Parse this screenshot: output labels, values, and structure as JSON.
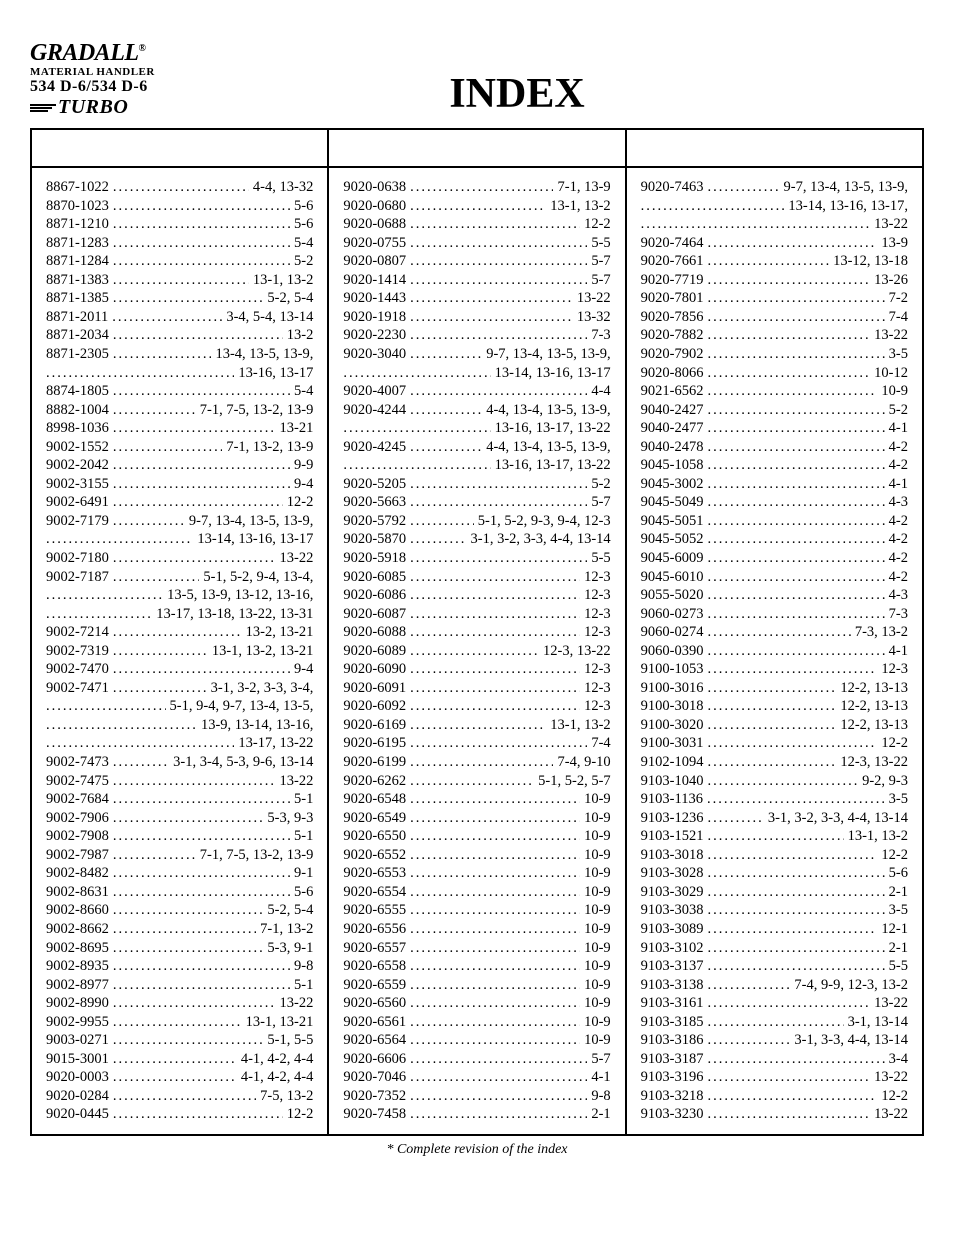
{
  "branding": {
    "brand": "GRADALL",
    "reg": "®",
    "line1": "MATERIAL HANDLER",
    "line2": "534 D-6/534 D-6",
    "turbo": "TURBO"
  },
  "title": "INDEX",
  "footnote": "*  Complete revision of the index",
  "columns": [
    [
      {
        "p": "8867-1022",
        "pg": "4-4, 13-32"
      },
      {
        "p": "8870-1023",
        "pg": "5-6"
      },
      {
        "p": "8871-1210",
        "pg": "5-6"
      },
      {
        "p": "8871-1283",
        "pg": "5-4"
      },
      {
        "p": "8871-1284",
        "pg": "5-2"
      },
      {
        "p": "8871-1383",
        "pg": "13-1, 13-2"
      },
      {
        "p": "8871-1385",
        "pg": "5-2, 5-4"
      },
      {
        "p": "8871-2011",
        "pg": "3-4, 5-4, 13-14"
      },
      {
        "p": "8871-2034",
        "pg": "13-2"
      },
      {
        "p": "8871-2305",
        "pg": "13-4, 13-5, 13-9,"
      },
      {
        "cont": true,
        "pg": "13-16, 13-17"
      },
      {
        "p": "8874-1805",
        "pg": "5-4"
      },
      {
        "p": "8882-1004",
        "pg": "7-1, 7-5, 13-2, 13-9"
      },
      {
        "p": "8998-1036",
        "pg": "13-21"
      },
      {
        "p": "9002-1552",
        "pg": "7-1, 13-2, 13-9"
      },
      {
        "p": "9002-2042",
        "pg": "9-9"
      },
      {
        "p": "9002-3155",
        "pg": "9-4"
      },
      {
        "p": "9002-6491",
        "pg": "12-2"
      },
      {
        "p": "9002-7179",
        "pg": "9-7, 13-4, 13-5, 13-9,"
      },
      {
        "cont": true,
        "pg": "13-14, 13-16, 13-17"
      },
      {
        "p": "9002-7180",
        "pg": "13-22"
      },
      {
        "p": "9002-7187",
        "pg": "5-1, 5-2, 9-4, 13-4,"
      },
      {
        "cont": true,
        "pg": "13-5, 13-9, 13-12, 13-16,"
      },
      {
        "cont": true,
        "pg": "13-17, 13-18, 13-22, 13-31"
      },
      {
        "p": "9002-7214",
        "pg": "13-2, 13-21"
      },
      {
        "p": "9002-7319",
        "pg": "13-1, 13-2, 13-21"
      },
      {
        "p": "9002-7470",
        "pg": "9-4"
      },
      {
        "p": "9002-7471",
        "pg": "3-1, 3-2, 3-3, 3-4,"
      },
      {
        "cont": true,
        "pg": "5-1, 9-4, 9-7, 13-4, 13-5,"
      },
      {
        "cont": true,
        "pg": "13-9, 13-14, 13-16,"
      },
      {
        "cont": true,
        "pg": "13-17, 13-22"
      },
      {
        "p": "9002-7473",
        "pg": "3-1, 3-4, 5-3, 9-6, 13-14"
      },
      {
        "p": "9002-7475",
        "pg": "13-22"
      },
      {
        "p": "9002-7684",
        "pg": "5-1"
      },
      {
        "p": "9002-7906",
        "pg": "5-3, 9-3"
      },
      {
        "p": "9002-7908",
        "pg": "5-1"
      },
      {
        "p": "9002-7987",
        "pg": "7-1, 7-5, 13-2, 13-9"
      },
      {
        "p": "9002-8482",
        "pg": "9-1"
      },
      {
        "p": "9002-8631",
        "pg": "5-6"
      },
      {
        "p": "9002-8660",
        "pg": "5-2, 5-4"
      },
      {
        "p": "9002-8662",
        "pg": "7-1, 13-2"
      },
      {
        "p": "9002-8695",
        "pg": "5-3, 9-1"
      },
      {
        "p": "9002-8935",
        "pg": "9-8"
      },
      {
        "p": "9002-8977",
        "pg": "5-1"
      },
      {
        "p": "9002-8990",
        "pg": "13-22"
      },
      {
        "p": "9002-9955",
        "pg": "13-1, 13-21"
      },
      {
        "p": "9003-0271",
        "pg": "5-1, 5-5"
      },
      {
        "p": "9015-3001",
        "pg": "4-1, 4-2, 4-4"
      },
      {
        "p": "9020-0003",
        "pg": "4-1, 4-2, 4-4"
      },
      {
        "p": "9020-0284",
        "pg": "7-5, 13-2"
      },
      {
        "p": "9020-0445",
        "pg": "12-2"
      }
    ],
    [
      {
        "p": "9020-0638",
        "pg": "7-1, 13-9"
      },
      {
        "p": "9020-0680",
        "pg": "13-1, 13-2"
      },
      {
        "p": "9020-0688",
        "pg": "12-2"
      },
      {
        "p": "9020-0755",
        "pg": "5-5"
      },
      {
        "p": "9020-0807",
        "pg": "5-7"
      },
      {
        "p": "9020-1414",
        "pg": "5-7"
      },
      {
        "p": "9020-1443",
        "pg": "13-22"
      },
      {
        "p": "9020-1918",
        "pg": "13-32"
      },
      {
        "p": "9020-2230",
        "pg": "7-3"
      },
      {
        "p": "9020-3040",
        "pg": "9-7, 13-4, 13-5, 13-9,"
      },
      {
        "cont": true,
        "pg": "13-14, 13-16, 13-17"
      },
      {
        "p": "9020-4007",
        "pg": "4-4"
      },
      {
        "p": "9020-4244",
        "pg": "4-4, 13-4, 13-5, 13-9,"
      },
      {
        "cont": true,
        "pg": "13-16, 13-17, 13-22"
      },
      {
        "p": "9020-4245",
        "pg": "4-4, 13-4, 13-5, 13-9,"
      },
      {
        "cont": true,
        "pg": "13-16, 13-17, 13-22"
      },
      {
        "p": "9020-5205",
        "pg": "5-2"
      },
      {
        "p": "9020-5663",
        "pg": "5-7"
      },
      {
        "p": "9020-5792",
        "pg": "5-1, 5-2, 9-3, 9-4, 12-3"
      },
      {
        "p": "9020-5870",
        "pg": "3-1, 3-2, 3-3, 4-4, 13-14"
      },
      {
        "p": "9020-5918",
        "pg": "5-5"
      },
      {
        "p": "9020-6085",
        "pg": "12-3"
      },
      {
        "p": "9020-6086",
        "pg": "12-3"
      },
      {
        "p": "9020-6087",
        "pg": "12-3"
      },
      {
        "p": "9020-6088",
        "pg": "12-3"
      },
      {
        "p": "9020-6089",
        "pg": "12-3, 13-22"
      },
      {
        "p": "9020-6090",
        "pg": "12-3"
      },
      {
        "p": "9020-6091",
        "pg": "12-3"
      },
      {
        "p": "9020-6092",
        "pg": "12-3"
      },
      {
        "p": "9020-6169",
        "pg": "13-1, 13-2"
      },
      {
        "p": "9020-6195",
        "pg": "7-4"
      },
      {
        "p": "9020-6199",
        "pg": "7-4, 9-10"
      },
      {
        "p": "9020-6262",
        "pg": "5-1, 5-2, 5-7"
      },
      {
        "p": "9020-6548",
        "pg": "10-9"
      },
      {
        "p": "9020-6549",
        "pg": "10-9"
      },
      {
        "p": "9020-6550",
        "pg": "10-9"
      },
      {
        "p": "9020-6552",
        "pg": "10-9"
      },
      {
        "p": "9020-6553",
        "pg": "10-9"
      },
      {
        "p": "9020-6554",
        "pg": "10-9"
      },
      {
        "p": "9020-6555",
        "pg": "10-9"
      },
      {
        "p": "9020-6556",
        "pg": "10-9"
      },
      {
        "p": "9020-6557",
        "pg": "10-9"
      },
      {
        "p": "9020-6558",
        "pg": "10-9"
      },
      {
        "p": "9020-6559",
        "pg": "10-9"
      },
      {
        "p": "9020-6560",
        "pg": "10-9"
      },
      {
        "p": "9020-6561",
        "pg": "10-9"
      },
      {
        "p": "9020-6564",
        "pg": "10-9"
      },
      {
        "p": "9020-6606",
        "pg": "5-7"
      },
      {
        "p": "9020-7046",
        "pg": "4-1"
      },
      {
        "p": "9020-7352",
        "pg": "9-8"
      },
      {
        "p": "9020-7458",
        "pg": "2-1"
      }
    ],
    [
      {
        "p": "9020-7463",
        "pg": "9-7, 13-4, 13-5, 13-9,"
      },
      {
        "cont": true,
        "pg": "13-14, 13-16, 13-17,"
      },
      {
        "cont": true,
        "pg": "13-22"
      },
      {
        "p": "9020-7464",
        "pg": "13-9"
      },
      {
        "p": "9020-7661",
        "pg": "13-12, 13-18"
      },
      {
        "p": "9020-7719",
        "pg": "13-26"
      },
      {
        "p": "9020-7801",
        "pg": "7-2"
      },
      {
        "p": "9020-7856",
        "pg": "7-4"
      },
      {
        "p": "9020-7882",
        "pg": "13-22"
      },
      {
        "p": "9020-7902",
        "pg": "3-5"
      },
      {
        "p": "9020-8066",
        "pg": "10-12"
      },
      {
        "p": "9021-6562",
        "pg": "10-9"
      },
      {
        "p": "9040-2427",
        "pg": "5-2"
      },
      {
        "p": "9040-2477",
        "pg": "4-1"
      },
      {
        "p": "9040-2478",
        "pg": "4-2"
      },
      {
        "p": "9045-1058",
        "pg": "4-2"
      },
      {
        "p": "9045-3002",
        "pg": "4-1"
      },
      {
        "p": "9045-5049",
        "pg": "4-3"
      },
      {
        "p": "9045-5051",
        "pg": "4-2"
      },
      {
        "p": "9045-5052",
        "pg": "4-2"
      },
      {
        "p": "9045-6009",
        "pg": "4-2"
      },
      {
        "p": "9045-6010",
        "pg": "4-2"
      },
      {
        "p": "9055-5020",
        "pg": "4-3"
      },
      {
        "p": "9060-0273",
        "pg": "7-3"
      },
      {
        "p": "9060-0274",
        "pg": "7-3, 13-2"
      },
      {
        "p": "9060-0390",
        "pg": "4-1"
      },
      {
        "p": "9100-1053",
        "pg": "12-3"
      },
      {
        "p": "9100-3016",
        "pg": "12-2, 13-13"
      },
      {
        "p": "9100-3018",
        "pg": "12-2, 13-13"
      },
      {
        "p": "9100-3020",
        "pg": "12-2, 13-13"
      },
      {
        "p": "9100-3031",
        "pg": "12-2"
      },
      {
        "p": "9102-1094",
        "pg": "12-3, 13-22"
      },
      {
        "p": "9103-1040",
        "pg": "9-2, 9-3"
      },
      {
        "p": "9103-1136",
        "pg": "3-5"
      },
      {
        "p": "9103-1236",
        "pg": "3-1, 3-2, 3-3, 4-4, 13-14"
      },
      {
        "p": "9103-1521",
        "pg": "13-1, 13-2"
      },
      {
        "p": "9103-3018",
        "pg": "12-2"
      },
      {
        "p": "9103-3028",
        "pg": "5-6"
      },
      {
        "p": "9103-3029",
        "pg": "2-1"
      },
      {
        "p": "9103-3038",
        "pg": "3-5"
      },
      {
        "p": "9103-3089",
        "pg": "12-1"
      },
      {
        "p": "9103-3102",
        "pg": "2-1"
      },
      {
        "p": "9103-3137",
        "pg": "5-5"
      },
      {
        "p": "9103-3138",
        "pg": "7-4, 9-9, 12-3, 13-2"
      },
      {
        "p": "9103-3161",
        "pg": "13-22"
      },
      {
        "p": "9103-3185",
        "pg": "3-1, 13-14"
      },
      {
        "p": "9103-3186",
        "pg": "3-1, 3-3, 4-4, 13-14"
      },
      {
        "p": "9103-3187",
        "pg": "3-4"
      },
      {
        "p": "9103-3196",
        "pg": "13-22"
      },
      {
        "p": "9103-3218",
        "pg": "12-2"
      },
      {
        "p": "9103-3230",
        "pg": "13-22"
      }
    ]
  ]
}
